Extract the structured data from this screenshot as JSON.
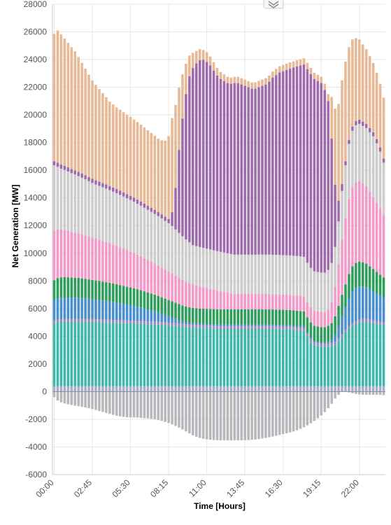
{
  "chart_data": {
    "type": "stacked-bar",
    "xlabel": "Time [Hours]",
    "ylabel": "Net Generation [MW]",
    "ylim": [
      -6000,
      28000
    ],
    "yticks": [
      -6000,
      -4000,
      -2000,
      0,
      2000,
      4000,
      6000,
      8000,
      10000,
      12000,
      14000,
      16000,
      18000,
      20000,
      22000,
      24000,
      26000,
      28000
    ],
    "ytick_labels": [
      "-6000",
      "-4000",
      "-2000",
      "0",
      "2000",
      "4000",
      "6000",
      "8000",
      "10000",
      "12000",
      "14000",
      "16000",
      "18000",
      "20000",
      "22000",
      "24000",
      "26000",
      "28000"
    ],
    "xtick_labels": [
      "00:00",
      "02:45",
      "05:30",
      "08:15",
      "11:00",
      "13:45",
      "16:30",
      "19:15",
      "22:00"
    ],
    "xtick_slots": [
      0,
      11,
      22,
      33,
      44,
      55,
      66,
      77,
      88
    ],
    "slot_count": 96,
    "grid": true,
    "legend": "none",
    "negative_series": {
      "color": "#b8b8bc",
      "values": [
        -400,
        -650,
        -780,
        -860,
        -920,
        -970,
        -1020,
        -1060,
        -1100,
        -1150,
        -1200,
        -1260,
        -1330,
        -1400,
        -1470,
        -1540,
        -1610,
        -1680,
        -1740,
        -1790,
        -1830,
        -1860,
        -1870,
        -1870,
        -1880,
        -1900,
        -1920,
        -1940,
        -1970,
        -2010,
        -2060,
        -2120,
        -2190,
        -2270,
        -2370,
        -2480,
        -2600,
        -2740,
        -2880,
        -3020,
        -3150,
        -3260,
        -3350,
        -3410,
        -3450,
        -3480,
        -3500,
        -3510,
        -3520,
        -3520,
        -3520,
        -3520,
        -3520,
        -3520,
        -3520,
        -3510,
        -3500,
        -3480,
        -3460,
        -3430,
        -3390,
        -3350,
        -3300,
        -3250,
        -3190,
        -3130,
        -3070,
        -3010,
        -2950,
        -2880,
        -2800,
        -2700,
        -2580,
        -2440,
        -2290,
        -2120,
        -1930,
        -1720,
        -1480,
        -1200,
        -880,
        -500,
        -230,
        0,
        0,
        -60,
        -120,
        -170,
        -210,
        -230,
        -230,
        -230,
        -230,
        -230,
        -240,
        -260
      ]
    },
    "series": [
      {
        "color": "#a8aec8",
        "values": [
          400,
          400,
          400,
          400,
          400,
          400,
          400,
          400,
          400,
          400,
          400,
          400,
          400,
          400,
          400,
          400,
          400,
          400,
          400,
          400,
          400,
          400,
          400,
          400,
          400,
          400,
          400,
          400,
          400,
          400,
          400,
          400,
          400,
          400,
          400,
          400,
          400,
          400,
          400,
          400,
          400,
          400,
          400,
          400,
          400,
          400,
          400,
          400,
          400,
          400,
          400,
          400,
          400,
          400,
          400,
          400,
          400,
          400,
          400,
          400,
          400,
          400,
          400,
          400,
          400,
          400,
          400,
          400,
          400,
          400,
          400,
          400,
          400,
          400,
          400,
          400,
          400,
          400,
          400,
          400,
          400,
          400,
          400,
          400,
          400,
          400,
          400,
          400,
          400,
          400,
          400,
          400,
          400,
          400,
          400,
          400
        ]
      },
      {
        "color": "#3fb8ab",
        "values": [
          4550,
          4600,
          4630,
          4640,
          4650,
          4650,
          4660,
          4660,
          4660,
          4660,
          4650,
          4640,
          4630,
          4620,
          4610,
          4600,
          4590,
          4580,
          4570,
          4560,
          4550,
          4540,
          4530,
          4520,
          4510,
          4500,
          4490,
          4480,
          4470,
          4460,
          4440,
          4420,
          4400,
          4380,
          4360,
          4340,
          4320,
          4300,
          4280,
          4260,
          4240,
          4220,
          4200,
          4190,
          4180,
          4170,
          4160,
          4150,
          4150,
          4150,
          4150,
          4150,
          4150,
          4150,
          4150,
          4150,
          4150,
          4150,
          4150,
          4150,
          4150,
          4150,
          4150,
          4140,
          4130,
          4120,
          4110,
          4100,
          4090,
          4070,
          4050,
          4020,
          3990,
          3560,
          3200,
          2950,
          2900,
          2850,
          2850,
          2850,
          2900,
          3000,
          3250,
          3550,
          3900,
          4150,
          4350,
          4500,
          4600,
          4650,
          4650,
          4600,
          4550,
          4500,
          4450,
          4400
        ]
      },
      {
        "color": "#a58bbf",
        "values": [
          200,
          200,
          200,
          200,
          200,
          200,
          200,
          200,
          200,
          200,
          200,
          200,
          200,
          200,
          200,
          200,
          200,
          200,
          200,
          200,
          200,
          200,
          200,
          200,
          200,
          200,
          200,
          200,
          200,
          200,
          200,
          200,
          200,
          200,
          200,
          200,
          200,
          200,
          200,
          200,
          200,
          200,
          200,
          200,
          200,
          200,
          200,
          200,
          200,
          200,
          200,
          200,
          200,
          200,
          200,
          200,
          200,
          200,
          200,
          200,
          200,
          200,
          200,
          200,
          200,
          200,
          200,
          200,
          200,
          200,
          200,
          200,
          200,
          200,
          200,
          200,
          200,
          200,
          200,
          200,
          200,
          200,
          200,
          200,
          200,
          200,
          200,
          200,
          200,
          200,
          200,
          200,
          200,
          200,
          200,
          200
        ]
      },
      {
        "color": "#4a8fcf",
        "values": [
          1500,
          1550,
          1560,
          1560,
          1550,
          1540,
          1530,
          1520,
          1500,
          1480,
          1460,
          1440,
          1420,
          1400,
          1380,
          1360,
          1330,
          1300,
          1270,
          1230,
          1190,
          1150,
          1120,
          1080,
          1030,
          980,
          920,
          860,
          800,
          740,
          680,
          610,
          540,
          470,
          400,
          330,
          260,
          200,
          150,
          120,
          100,
          100,
          100,
          100,
          100,
          100,
          100,
          100,
          100,
          100,
          100,
          100,
          100,
          100,
          100,
          100,
          100,
          100,
          100,
          100,
          100,
          100,
          100,
          100,
          100,
          100,
          100,
          100,
          100,
          100,
          100,
          100,
          100,
          100,
          100,
          100,
          100,
          100,
          100,
          150,
          250,
          500,
          900,
          1300,
          1600,
          2000,
          2300,
          2400,
          2400,
          2350,
          2300,
          2200,
          2100,
          2000,
          1900,
          1800
        ]
      },
      {
        "color": "#2e9e5b",
        "values": [
          1400,
          1450,
          1470,
          1470,
          1460,
          1450,
          1440,
          1430,
          1420,
          1410,
          1400,
          1390,
          1380,
          1370,
          1360,
          1350,
          1340,
          1330,
          1320,
          1310,
          1300,
          1290,
          1280,
          1270,
          1260,
          1250,
          1240,
          1230,
          1220,
          1210,
          1200,
          1190,
          1180,
          1170,
          1160,
          1150,
          1140,
          1130,
          1120,
          1110,
          1100,
          1100,
          1100,
          1100,
          1100,
          1100,
          1100,
          1100,
          1100,
          1100,
          1100,
          1100,
          1100,
          1100,
          1100,
          1100,
          1100,
          1100,
          1100,
          1100,
          1100,
          1100,
          1100,
          1100,
          1100,
          1100,
          1100,
          1100,
          1100,
          1100,
          1100,
          1100,
          1100,
          1100,
          1100,
          1100,
          1100,
          1100,
          1100,
          1150,
          1200,
          1350,
          1450,
          1550,
          1650,
          1750,
          1800,
          1800,
          1800,
          1750,
          1700,
          1650,
          1600,
          1550,
          1500,
          1450
        ]
      },
      {
        "color": "#f49ac8",
        "values": [
          3600,
          3500,
          3450,
          3400,
          3350,
          3300,
          3260,
          3220,
          3180,
          3140,
          3100,
          3060,
          3020,
          2980,
          2940,
          2900,
          2860,
          2820,
          2780,
          2740,
          2700,
          2650,
          2600,
          2550,
          2500,
          2450,
          2400,
          2350,
          2300,
          2250,
          2200,
          2150,
          2100,
          2050,
          2000,
          1950,
          1900,
          1850,
          1800,
          1750,
          1700,
          1650,
          1600,
          1550,
          1500,
          1450,
          1400,
          1350,
          1300,
          1250,
          1200,
          1150,
          1100,
          1100,
          1100,
          1100,
          1100,
          1100,
          1100,
          1100,
          1100,
          1100,
          1100,
          1100,
          1100,
          1100,
          1100,
          1100,
          1100,
          1100,
          1100,
          1100,
          1100,
          1100,
          1100,
          1100,
          1100,
          1100,
          1100,
          1200,
          1500,
          2100,
          3000,
          4000,
          4800,
          5400,
          5700,
          5800,
          5800,
          5700,
          5600,
          5400,
          5200,
          5000,
          4800,
          4500
        ]
      },
      {
        "color": "#cdcdcd",
        "values": [
          4700,
          4550,
          4400,
          4350,
          4300,
          4250,
          4200,
          4150,
          4100,
          4050,
          4000,
          3950,
          3920,
          3900,
          3880,
          3860,
          3840,
          3820,
          3800,
          3780,
          3760,
          3740,
          3720,
          3700,
          3680,
          3660,
          3640,
          3620,
          3600,
          3580,
          3560,
          3540,
          3520,
          3500,
          3450,
          3350,
          3250,
          3150,
          3050,
          2950,
          2850,
          2850,
          2850,
          2850,
          2850,
          2850,
          2850,
          2850,
          2850,
          2850,
          2850,
          2850,
          2850,
          2850,
          2850,
          2850,
          2850,
          2850,
          2850,
          2850,
          2850,
          2850,
          2850,
          2850,
          2850,
          2850,
          2850,
          2850,
          2850,
          2850,
          2850,
          2850,
          2850,
          2850,
          2850,
          2850,
          2850,
          2850,
          2850,
          2850,
          2850,
          2900,
          3100,
          3500,
          3800,
          4000,
          4100,
          4150,
          4150,
          4150,
          4200,
          4300,
          4400,
          4300,
          4100,
          3800
        ]
      },
      {
        "color": "#a06aaf",
        "values": [
          300,
          300,
          300,
          300,
          300,
          300,
          300,
          300,
          300,
          300,
          300,
          300,
          300,
          300,
          300,
          300,
          300,
          300,
          300,
          300,
          300,
          300,
          300,
          300,
          300,
          300,
          300,
          300,
          300,
          300,
          300,
          300,
          300,
          300,
          1000,
          3000,
          6000,
          8500,
          10500,
          12000,
          12800,
          13200,
          13500,
          13600,
          13500,
          13300,
          13000,
          12700,
          12500,
          12400,
          12300,
          12300,
          12400,
          12400,
          12300,
          12200,
          12100,
          12000,
          12000,
          12100,
          12200,
          12300,
          12500,
          12800,
          13000,
          13200,
          13300,
          13400,
          13500,
          13600,
          13700,
          13800,
          13900,
          14000,
          14000,
          13900,
          13800,
          13700,
          13200,
          12200,
          9000,
          4500,
          1500,
          500,
          300,
          300,
          300,
          300,
          300,
          300,
          300,
          300,
          300,
          300,
          300,
          300
        ]
      },
      {
        "color": "#e8b994",
        "values": [
          9200,
          9550,
          9400,
          9200,
          9000,
          8800,
          8600,
          8300,
          8000,
          7700,
          7400,
          7100,
          6900,
          6700,
          6500,
          6300,
          6100,
          6000,
          5900,
          5850,
          5800,
          5750,
          5700,
          5650,
          5600,
          5550,
          5500,
          5450,
          5400,
          5350,
          5300,
          5350,
          5500,
          6000,
          6800,
          6000,
          4500,
          3200,
          2200,
          1500,
          1100,
          900,
          800,
          700,
          700,
          650,
          600,
          550,
          500,
          480,
          460,
          450,
          450,
          450,
          450,
          450,
          450,
          450,
          450,
          450,
          450,
          450,
          450,
          450,
          450,
          450,
          450,
          450,
          450,
          450,
          450,
          450,
          450,
          450,
          450,
          450,
          450,
          450,
          450,
          500,
          3000,
          5500,
          7000,
          7500,
          7200,
          6700,
          6300,
          6000,
          5800,
          5600,
          5400,
          5200,
          5000,
          4800,
          4600,
          4400
        ]
      }
    ]
  },
  "toolbar": {
    "menu_icon": "chevron-double-down-icon"
  }
}
